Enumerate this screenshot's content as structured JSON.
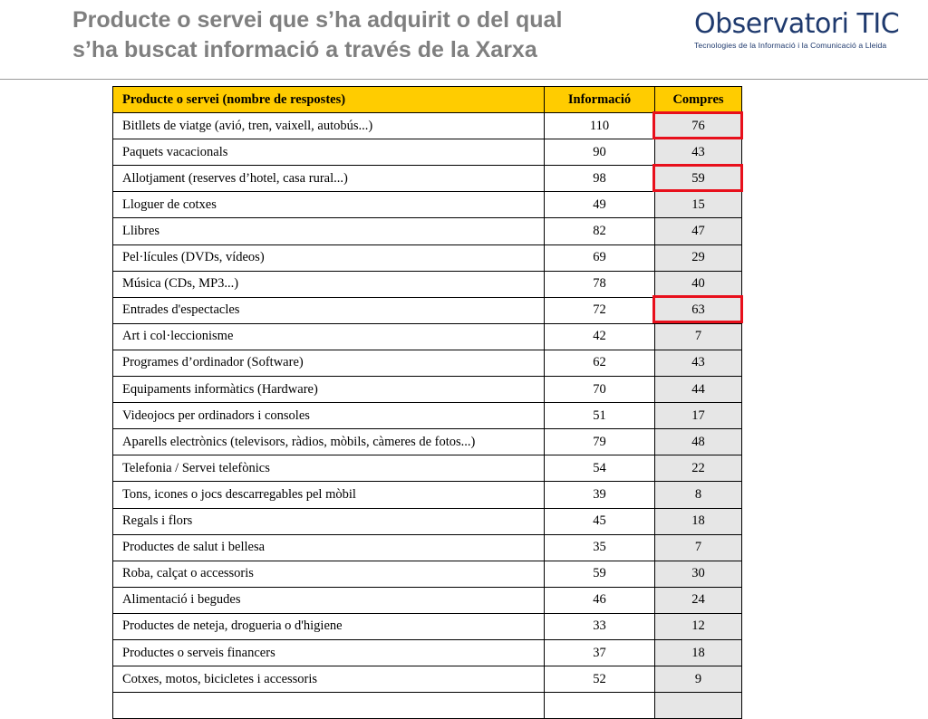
{
  "title": {
    "line1": "Producte o servei que s’ha adquirit o del qual",
    "line2": "s’ha buscat informació a través de la Xarxa"
  },
  "logo": {
    "name": "Observatori TIC",
    "subtitle": "Tecnologies de la Informació i la Comunicació a Lleida"
  },
  "table": {
    "headers": {
      "name": "Producte o servei (nombre de respostes)",
      "info": "Informació",
      "buy": "Compres"
    },
    "rows": [
      {
        "name": "Bitllets de viatge (avió, tren, vaixell, autobús...)",
        "info": "110",
        "buy": "76",
        "highlight": true
      },
      {
        "name": "Paquets vacacionals",
        "info": "90",
        "buy": "43"
      },
      {
        "name": "Allotjament (reserves d’hotel, casa rural...)",
        "info": "98",
        "buy": "59",
        "highlight": true
      },
      {
        "name": "Lloguer de cotxes",
        "info": "49",
        "buy": "15"
      },
      {
        "name": "Llibres",
        "info": "82",
        "buy": "47"
      },
      {
        "name": "Pel·lícules (DVDs, vídeos)",
        "info": "69",
        "buy": "29"
      },
      {
        "name": "Música (CDs, MP3...)",
        "info": "78",
        "buy": "40"
      },
      {
        "name": "Entrades d'espectacles",
        "info": "72",
        "buy": "63",
        "highlight": true
      },
      {
        "name": "Art i col·leccionisme",
        "info": "42",
        "buy": "7"
      },
      {
        "name": "Programes d’ordinador (Software)",
        "info": "62",
        "buy": "43"
      },
      {
        "name": "Equipaments informàtics (Hardware)",
        "info": "70",
        "buy": "44"
      },
      {
        "name": "Videojocs per ordinadors i consoles",
        "info": "51",
        "buy": "17"
      },
      {
        "name": "Aparells electrònics (televisors, ràdios, mòbils, càmeres de fotos...)",
        "info": "79",
        "buy": "48"
      },
      {
        "name": "Telefonia / Servei telefònics",
        "info": "54",
        "buy": "22"
      },
      {
        "name": "Tons, icones o jocs descarregables pel mòbil",
        "info": "39",
        "buy": "8"
      },
      {
        "name": "Regals i flors",
        "info": "45",
        "buy": "18"
      },
      {
        "name": "Productes de salut i bellesa",
        "info": "35",
        "buy": "7"
      },
      {
        "name": "Roba, calçat o accessoris",
        "info": "59",
        "buy": "30"
      },
      {
        "name": "Alimentació i begudes",
        "info": "46",
        "buy": "24"
      },
      {
        "name": "Productes de neteja, drogueria o d'higiene",
        "info": "33",
        "buy": "12"
      },
      {
        "name": "Productes o serveis financers",
        "info": "37",
        "buy": "18"
      },
      {
        "name": "Cotxes, motos, bicicletes i accessoris",
        "info": "52",
        "buy": "9"
      },
      {
        "name": "",
        "info": "",
        "buy": ""
      }
    ]
  },
  "colors": {
    "header_fill": "#ffcc00",
    "purchases_fill": "#e6e6e6",
    "highlight": "#e8101c",
    "title": "#7f7f7f",
    "logo": "#1f3a6e"
  }
}
